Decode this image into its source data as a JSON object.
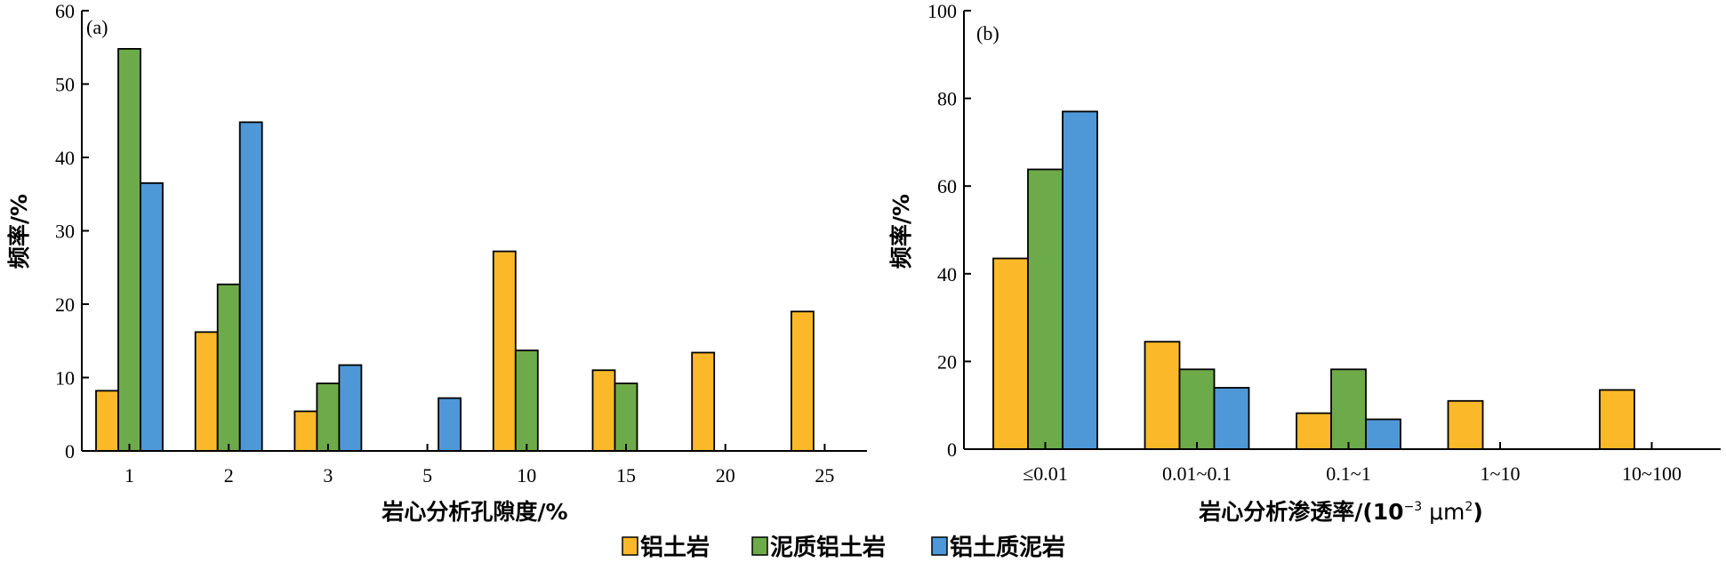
{
  "colors": {
    "bauxite": "#FBB929",
    "muddy_bauxite": "#6DAB4A",
    "bauxitic_mudstone": "#4E98D8",
    "edge": "#000000"
  },
  "legend": [
    {
      "label": "铝土岩",
      "color": "#FBB929"
    },
    {
      "label": "泥质铝土岩",
      "color": "#6DAB4A"
    },
    {
      "label": "铝土质泥岩",
      "color": "#4E98D8"
    }
  ],
  "chart_data": [
    {
      "type": "bar",
      "panel": "(a)",
      "xlabel": "岩心分析孔隙度/%",
      "ylabel": "频率/%",
      "ylim": [
        0,
        60
      ],
      "yticks": [
        "0",
        "10",
        "20",
        "30",
        "40",
        "50",
        "60"
      ],
      "categories": [
        "1",
        "2",
        "3",
        "5",
        "10",
        "15",
        "20",
        "25"
      ],
      "series": [
        {
          "name": "铝土岩",
          "values": [
            8.2,
            16.2,
            5.4,
            0,
            27.2,
            11.0,
            13.4,
            19.0
          ]
        },
        {
          "name": "泥质铝土岩",
          "values": [
            54.8,
            22.7,
            9.2,
            0,
            13.7,
            9.2,
            0,
            0
          ]
        },
        {
          "name": "铝土质泥岩",
          "values": [
            36.5,
            44.8,
            11.7,
            7.2,
            0,
            0,
            0,
            0
          ]
        }
      ]
    },
    {
      "type": "bar",
      "panel": "(b)",
      "xlabel": "岩心分析渗透率/(10",
      "xlabel_sup": "−3",
      "xlabel_unit": " μm",
      "xlabel_unit_sup": "2",
      "xlabel_close": ")",
      "ylabel": "频率/%",
      "ylim": [
        0,
        100
      ],
      "yticks": [
        "0",
        "20",
        "40",
        "60",
        "80",
        "100"
      ],
      "categories": [
        "≤0.01",
        "0.01~0.1",
        "0.1~1",
        "1~10",
        "10~100"
      ],
      "series": [
        {
          "name": "铝土岩",
          "values": [
            43.5,
            24.5,
            8.2,
            11.0,
            13.5
          ]
        },
        {
          "name": "泥质铝土岩",
          "values": [
            63.8,
            18.2,
            18.2,
            0,
            0
          ]
        },
        {
          "name": "铝土质泥岩",
          "values": [
            77.0,
            14.0,
            6.8,
            0,
            0
          ]
        }
      ]
    }
  ]
}
